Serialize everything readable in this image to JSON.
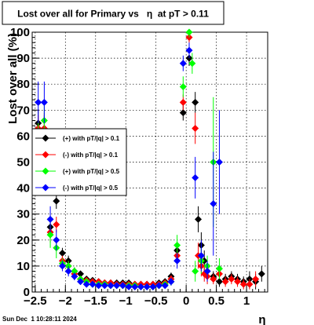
{
  "chart_data": {
    "type": "scatter",
    "title": "Lost over all for Primary vs   η  at pT > 0.11",
    "xlabel": "η",
    "ylabel": "Lost over all (%)",
    "xlim": [
      -2.55,
      1.35
    ],
    "ylim": [
      0,
      100
    ],
    "grid": true,
    "legend_position": "center-left",
    "x_ticks": [
      {
        "value": -2.5,
        "label": "−2.5"
      },
      {
        "value": -2.0,
        "label": "−2"
      },
      {
        "value": -1.5,
        "label": "−1.5"
      },
      {
        "value": -1.0,
        "label": "−1"
      },
      {
        "value": -0.5,
        "label": "−0.5"
      },
      {
        "value": 0.0,
        "label": "0"
      },
      {
        "value": 0.5,
        "label": "0.5"
      },
      {
        "value": 1.0,
        "label": "1"
      }
    ],
    "y_ticks": [
      {
        "value": 0,
        "label": "0"
      },
      {
        "value": 10,
        "label": "10"
      },
      {
        "value": 20,
        "label": "20"
      },
      {
        "value": 30,
        "label": "30"
      },
      {
        "value": 40,
        "label": "40"
      },
      {
        "value": 50,
        "label": "50"
      },
      {
        "value": 60,
        "label": "60"
      },
      {
        "value": 70,
        "label": "70"
      },
      {
        "value": 80,
        "label": "80"
      },
      {
        "value": 90,
        "label": "90"
      },
      {
        "value": 100,
        "label": "100"
      }
    ],
    "series": [
      {
        "name": "(+) with pT/|q| > 0.1",
        "color": "#000000",
        "points": [
          [
            -2.45,
            65,
            5
          ],
          [
            -2.35,
            62,
            6
          ],
          [
            -2.25,
            25,
            4
          ],
          [
            -2.15,
            35,
            3
          ],
          [
            -2.05,
            15,
            2
          ],
          [
            -1.95,
            12,
            2
          ],
          [
            -1.85,
            8,
            1.5
          ],
          [
            -1.75,
            7,
            1
          ],
          [
            -1.65,
            5,
            1
          ],
          [
            -1.55,
            4.5,
            1
          ],
          [
            -1.45,
            4,
            1
          ],
          [
            -1.35,
            3.5,
            0.8
          ],
          [
            -1.25,
            3.5,
            0.8
          ],
          [
            -1.15,
            3.5,
            0.8
          ],
          [
            -1.05,
            3.5,
            0.8
          ],
          [
            -0.95,
            3.5,
            0.8
          ],
          [
            -0.85,
            3,
            0.8
          ],
          [
            -0.75,
            3,
            0.8
          ],
          [
            -0.65,
            3,
            0.8
          ],
          [
            -0.55,
            3,
            0.8
          ],
          [
            -0.45,
            3.5,
            0.8
          ],
          [
            -0.35,
            4,
            1
          ],
          [
            -0.25,
            6,
            1.5
          ],
          [
            -0.15,
            16,
            3
          ],
          [
            -0.05,
            69,
            3
          ],
          [
            0.05,
            90,
            3
          ],
          [
            0.15,
            73,
            4
          ],
          [
            0.2,
            28,
            5
          ],
          [
            0.25,
            18,
            5
          ],
          [
            0.3,
            12,
            4
          ],
          [
            0.35,
            8,
            3
          ],
          [
            0.45,
            6,
            2
          ],
          [
            0.55,
            4,
            2
          ],
          [
            0.65,
            5,
            2
          ],
          [
            0.75,
            6,
            2
          ],
          [
            0.85,
            5,
            2
          ],
          [
            0.95,
            4,
            2
          ],
          [
            1.05,
            5,
            3
          ],
          [
            1.15,
            4,
            3
          ],
          [
            1.25,
            7,
            3
          ]
        ]
      },
      {
        "name": "(-) with pT/|q| > 0.1",
        "color": "#ff0000",
        "points": [
          [
            -2.45,
            63,
            5
          ],
          [
            -2.35,
            63,
            6
          ],
          [
            -2.25,
            23,
            4
          ],
          [
            -2.15,
            26,
            3
          ],
          [
            -2.05,
            12,
            2
          ],
          [
            -1.95,
            10,
            2
          ],
          [
            -1.85,
            7,
            1.5
          ],
          [
            -1.75,
            5,
            1
          ],
          [
            -1.65,
            4.5,
            1
          ],
          [
            -1.55,
            4,
            1
          ],
          [
            -1.45,
            4,
            1
          ],
          [
            -1.35,
            3.5,
            0.8
          ],
          [
            -1.25,
            3.5,
            0.8
          ],
          [
            -1.15,
            3,
            0.8
          ],
          [
            -1.05,
            3,
            0.8
          ],
          [
            -0.95,
            3,
            0.8
          ],
          [
            -0.85,
            3,
            0.8
          ],
          [
            -0.75,
            3,
            0.8
          ],
          [
            -0.65,
            3,
            0.8
          ],
          [
            -0.55,
            3,
            0.8
          ],
          [
            -0.45,
            3,
            0.8
          ],
          [
            -0.35,
            3.5,
            1
          ],
          [
            -0.25,
            5,
            1.5
          ],
          [
            -0.15,
            14,
            3
          ],
          [
            -0.05,
            73,
            3
          ],
          [
            0.05,
            98,
            2
          ],
          [
            0.15,
            63,
            6
          ],
          [
            0.2,
            14,
            5
          ],
          [
            0.25,
            10,
            4
          ],
          [
            0.3,
            7,
            3
          ],
          [
            0.35,
            6,
            3
          ],
          [
            0.45,
            5,
            2
          ],
          [
            0.55,
            7,
            2
          ],
          [
            0.65,
            4,
            2
          ],
          [
            0.75,
            5,
            2
          ],
          [
            0.85,
            4,
            2
          ],
          [
            0.95,
            3,
            2
          ],
          [
            1.05,
            3,
            2
          ],
          [
            1.15,
            5,
            3
          ]
        ]
      },
      {
        "name": "(+) with pT/|q| > 0.5",
        "color": "#00ff00",
        "points": [
          [
            -2.45,
            60,
            6
          ],
          [
            -2.35,
            66,
            8
          ],
          [
            -2.25,
            22,
            5
          ],
          [
            -2.15,
            17,
            4
          ],
          [
            -2.05,
            11,
            2
          ],
          [
            -1.95,
            10,
            2
          ],
          [
            -1.85,
            8,
            1.5
          ],
          [
            -1.75,
            5,
            1
          ],
          [
            -1.65,
            4,
            1
          ],
          [
            -1.55,
            3,
            1
          ],
          [
            -1.45,
            3,
            1
          ],
          [
            -1.35,
            3,
            0.8
          ],
          [
            -1.25,
            2.5,
            0.8
          ],
          [
            -1.15,
            2.5,
            0.8
          ],
          [
            -1.05,
            2.5,
            0.8
          ],
          [
            -0.95,
            2.5,
            0.8
          ],
          [
            -0.85,
            2.5,
            0.8
          ],
          [
            -0.75,
            2,
            0.8
          ],
          [
            -0.65,
            2,
            0.8
          ],
          [
            -0.55,
            2,
            0.8
          ],
          [
            -0.45,
            2.5,
            0.8
          ],
          [
            -0.35,
            3,
            1
          ],
          [
            -0.25,
            4,
            1.5
          ],
          [
            -0.15,
            18,
            4
          ],
          [
            -0.05,
            79,
            4
          ],
          [
            0.05,
            100,
            2
          ],
          [
            0.1,
            88,
            4
          ],
          [
            0.15,
            8,
            4
          ],
          [
            0.25,
            12,
            5
          ],
          [
            0.35,
            10,
            4
          ],
          [
            0.45,
            50,
            25
          ],
          [
            0.55,
            9,
            4
          ]
        ]
      },
      {
        "name": "(-) with pT/|q| > 0.5",
        "color": "#0000ff",
        "points": [
          [
            -2.45,
            73,
            8
          ],
          [
            -2.35,
            73,
            8
          ],
          [
            -2.25,
            28,
            5
          ],
          [
            -2.15,
            20,
            4
          ],
          [
            -2.05,
            10,
            2
          ],
          [
            -1.95,
            8,
            2
          ],
          [
            -1.85,
            6,
            1.5
          ],
          [
            -1.75,
            4,
            1
          ],
          [
            -1.65,
            3,
            1
          ],
          [
            -1.55,
            3,
            1
          ],
          [
            -1.45,
            2.5,
            1
          ],
          [
            -1.35,
            2.5,
            0.8
          ],
          [
            -1.25,
            2.5,
            0.8
          ],
          [
            -1.15,
            2.5,
            0.8
          ],
          [
            -1.05,
            2.5,
            0.8
          ],
          [
            -0.95,
            2,
            0.8
          ],
          [
            -0.85,
            2,
            0.8
          ],
          [
            -0.75,
            2,
            0.8
          ],
          [
            -0.65,
            2,
            0.8
          ],
          [
            -0.55,
            2,
            0.8
          ],
          [
            -0.45,
            2.5,
            0.8
          ],
          [
            -0.35,
            2.5,
            1
          ],
          [
            -0.25,
            4,
            1.5
          ],
          [
            -0.15,
            12,
            3
          ],
          [
            -0.05,
            88,
            3
          ],
          [
            0.05,
            93,
            3
          ],
          [
            0.15,
            44,
            8
          ],
          [
            0.25,
            14,
            6
          ],
          [
            0.35,
            8,
            4
          ],
          [
            0.45,
            34,
            20
          ],
          [
            0.55,
            50,
            20
          ]
        ]
      }
    ]
  },
  "footer": {
    "timestamp": "Sun Dec  1 10:28:11 2024"
  }
}
